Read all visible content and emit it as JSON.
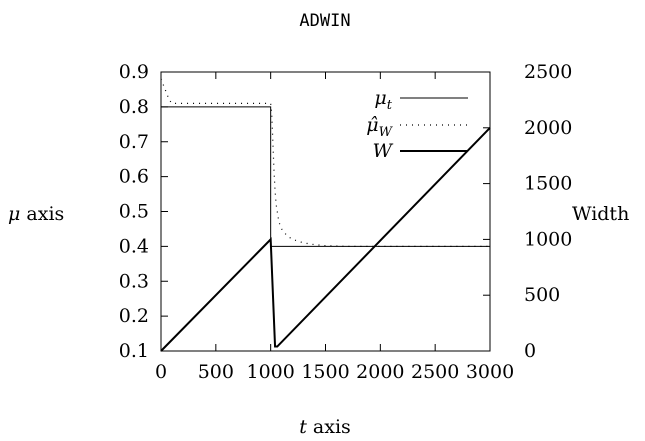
{
  "chart_data": {
    "type": "line",
    "title": "ADWIN",
    "xlabel": {
      "var": "t",
      "rest": " axis"
    },
    "ylabel_left": {
      "var": "μ",
      "rest": " axis"
    },
    "ylabel_right": "Width",
    "xlim": [
      0,
      3000
    ],
    "ylim_left": [
      0.1,
      0.9
    ],
    "ylim_right": [
      0,
      2500
    ],
    "x_ticks": [
      "0",
      "500",
      "1000",
      "1500",
      "2000",
      "2500",
      "3000"
    ],
    "y_left_ticks": [
      "0.1",
      "0.2",
      "0.3",
      "0.4",
      "0.5",
      "0.6",
      "0.7",
      "0.8",
      "0.9"
    ],
    "y_right_ticks": [
      "0",
      "500",
      "1000",
      "1500",
      "2000",
      "2500"
    ],
    "grid": false,
    "legend_position": "top-right",
    "series": [
      {
        "name": "μ_t",
        "axis": "left",
        "style": "thin",
        "points": [
          [
            0,
            0.8
          ],
          [
            1000,
            0.8
          ],
          [
            1000,
            0.4
          ],
          [
            3000,
            0.4
          ]
        ]
      },
      {
        "name": "μ̂_W",
        "axis": "left",
        "style": "dotted",
        "points": [
          [
            0,
            0.88
          ],
          [
            25,
            0.86
          ],
          [
            50,
            0.84
          ],
          [
            75,
            0.82
          ],
          [
            100,
            0.81
          ],
          [
            150,
            0.81
          ],
          [
            200,
            0.81
          ],
          [
            300,
            0.81
          ],
          [
            400,
            0.81
          ],
          [
            500,
            0.81
          ],
          [
            600,
            0.81
          ],
          [
            700,
            0.81
          ],
          [
            800,
            0.81
          ],
          [
            900,
            0.81
          ],
          [
            1000,
            0.81
          ],
          [
            1010,
            0.78
          ],
          [
            1020,
            0.7
          ],
          [
            1030,
            0.62
          ],
          [
            1040,
            0.56
          ],
          [
            1050,
            0.52
          ],
          [
            1075,
            0.47
          ],
          [
            1100,
            0.45
          ],
          [
            1150,
            0.43
          ],
          [
            1200,
            0.42
          ],
          [
            1300,
            0.41
          ],
          [
            1400,
            0.405
          ],
          [
            1500,
            0.402
          ],
          [
            1700,
            0.4
          ],
          [
            2000,
            0.4
          ],
          [
            2500,
            0.4
          ],
          [
            3000,
            0.4
          ]
        ]
      },
      {
        "name": "W",
        "axis": "right",
        "style": "thick",
        "points": [
          [
            0,
            0
          ],
          [
            1000,
            1000
          ],
          [
            1040,
            40
          ],
          [
            1060,
            40
          ],
          [
            3000,
            2000
          ]
        ]
      }
    ]
  }
}
